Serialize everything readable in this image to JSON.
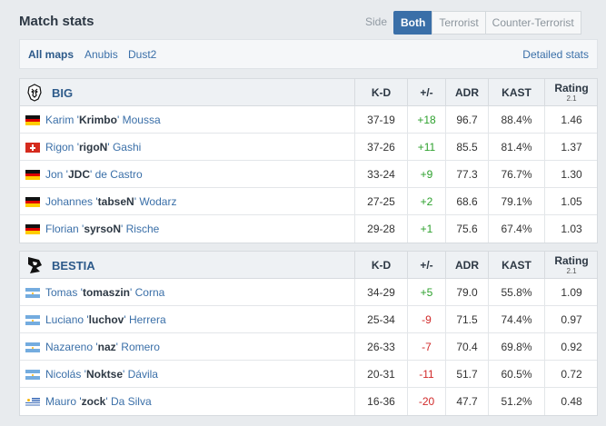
{
  "header": {
    "title": "Match stats",
    "side_label": "Side",
    "tabs": [
      "Both",
      "Terrorist",
      "Counter-Terrorist"
    ],
    "active_tab": "Both"
  },
  "maps": {
    "items": [
      "All maps",
      "Anubis",
      "Dust2"
    ],
    "active": "All maps",
    "detailed_link": "Detailed stats"
  },
  "columns": {
    "kd": "K-D",
    "plusminus": "+/-",
    "adr": "ADR",
    "kast": "KAST",
    "rating": "Rating",
    "rating_version": "2.1"
  },
  "teams": [
    {
      "name": "BIG",
      "logo_icon": "big-team-logo-icon",
      "players": [
        {
          "first": "Karim '",
          "nick": "Krimbo",
          "last": "' Moussa",
          "flag": "germany",
          "kd": "37-19",
          "pm": "+18",
          "adr": "96.7",
          "kast": "88.4%",
          "rating": "1.46"
        },
        {
          "first": "Rigon '",
          "nick": "rigoN",
          "last": "' Gashi",
          "flag": "switzerland",
          "kd": "37-26",
          "pm": "+11",
          "adr": "85.5",
          "kast": "81.4%",
          "rating": "1.37"
        },
        {
          "first": "Jon '",
          "nick": "JDC",
          "last": "' de Castro",
          "flag": "germany",
          "kd": "33-24",
          "pm": "+9",
          "adr": "77.3",
          "kast": "76.7%",
          "rating": "1.30"
        },
        {
          "first": "Johannes '",
          "nick": "tabseN",
          "last": "' Wodarz",
          "flag": "germany",
          "kd": "27-25",
          "pm": "+2",
          "adr": "68.6",
          "kast": "79.1%",
          "rating": "1.05"
        },
        {
          "first": "Florian '",
          "nick": "syrsoN",
          "last": "' Rische",
          "flag": "germany",
          "kd": "29-28",
          "pm": "+1",
          "adr": "75.6",
          "kast": "67.4%",
          "rating": "1.03"
        }
      ]
    },
    {
      "name": "BESTIA",
      "logo_icon": "bestia-team-logo-icon",
      "players": [
        {
          "first": "Tomas '",
          "nick": "tomaszin",
          "last": "' Corna",
          "flag": "argentina",
          "kd": "34-29",
          "pm": "+5",
          "adr": "79.0",
          "kast": "55.8%",
          "rating": "1.09"
        },
        {
          "first": "Luciano '",
          "nick": "luchov",
          "last": "' Herrera",
          "flag": "argentina",
          "kd": "25-34",
          "pm": "-9",
          "adr": "71.5",
          "kast": "74.4%",
          "rating": "0.97"
        },
        {
          "first": "Nazareno '",
          "nick": "naz",
          "last": "' Romero",
          "flag": "argentina",
          "kd": "26-33",
          "pm": "-7",
          "adr": "70.4",
          "kast": "69.8%",
          "rating": "0.92"
        },
        {
          "first": "Nicolás '",
          "nick": "Noktse",
          "last": "' Dávila",
          "flag": "argentina",
          "kd": "20-31",
          "pm": "-11",
          "adr": "51.7",
          "kast": "60.5%",
          "rating": "0.72"
        },
        {
          "first": "Mauro '",
          "nick": "zock",
          "last": "' Da Silva",
          "flag": "uruguay",
          "kd": "16-36",
          "pm": "-20",
          "adr": "47.7",
          "kast": "51.2%",
          "rating": "0.48"
        }
      ]
    }
  ],
  "colors": {
    "accent": "#3a6fa8",
    "positive": "#2ea12e",
    "negative": "#d12a2a"
  }
}
